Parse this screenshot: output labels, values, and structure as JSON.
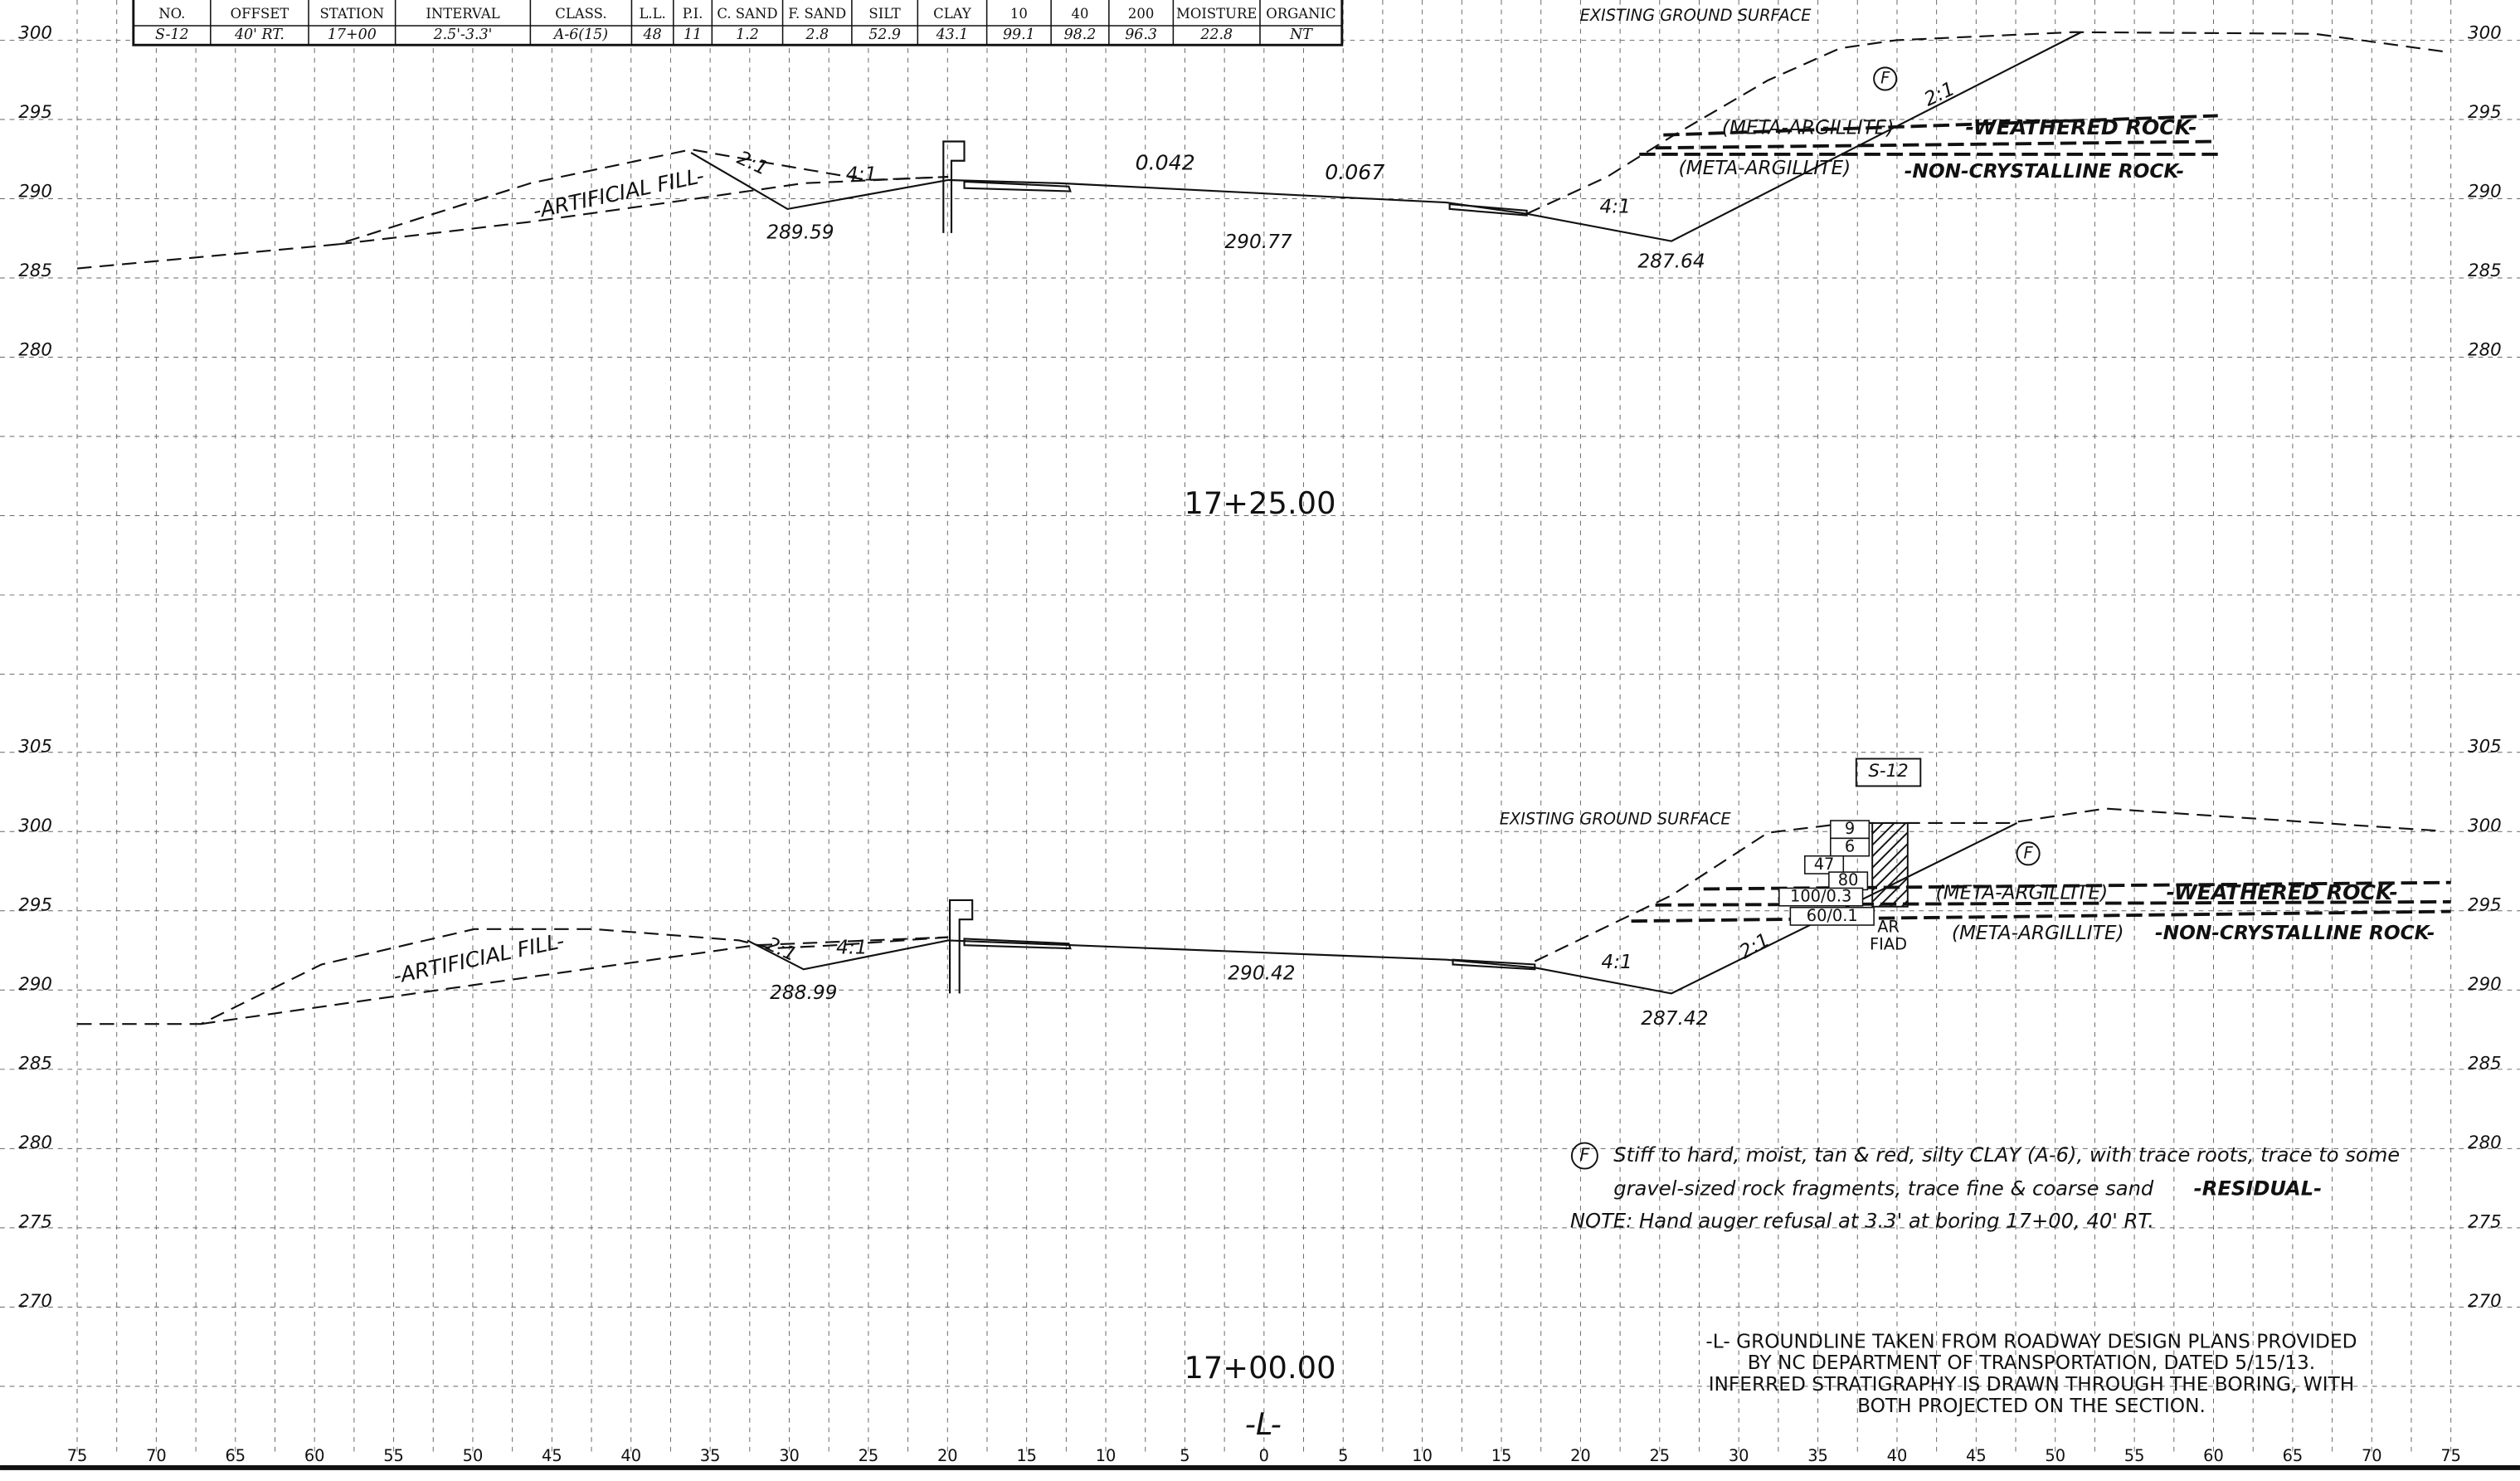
{
  "table": {
    "headers": [
      "NO.",
      "OFFSET",
      "STATION",
      "INTERVAL",
      "CLASS.",
      "L.L.",
      "P.I.",
      "C. SAND",
      "F. SAND",
      "SILT",
      "CLAY",
      "10",
      "40",
      "200",
      "MOISTURE",
      "ORGANIC"
    ],
    "row": [
      "S-12",
      "40' RT.",
      "17+00",
      "2.5'-3.3'",
      "A-6(15)",
      "48",
      "11",
      "1.2",
      "2.8",
      "52.9",
      "43.1",
      "99.1",
      "98.2",
      "96.3",
      "22.8",
      "NT"
    ]
  },
  "sections": [
    {
      "station": "17+25.00",
      "elevations": [
        300,
        295,
        290,
        285,
        280
      ],
      "labels": [
        "EXISTING GROUND SURFACE",
        "F",
        "2:1",
        "(META-ARGILLITE)",
        "-WEATHERED ROCK-",
        "(META-ARGILLITE)",
        "-NON-CRYSTALLINE ROCK-",
        "-ARTIFICIAL FILL-",
        "2:1",
        "4:1",
        "0.042",
        "0.067",
        "4:1",
        "289.59",
        "290.77",
        "287.64"
      ]
    },
    {
      "station": "17+00.00",
      "elevations": [
        305,
        300,
        295,
        290,
        285,
        280,
        275,
        270
      ],
      "labels": [
        "S-12",
        "EXISTING GROUND SURFACE",
        "F",
        "(META-ARGILLITE)",
        "-WEATHERED ROCK-",
        "(META-ARGILLITE)",
        "-NON-CRYSTALLINE ROCK-",
        "-ARTIFICIAL FILL-",
        "2:1",
        "4:1",
        "290.42",
        "288.99",
        "4:1",
        "2:1",
        "287.42",
        "AR",
        "FIAD"
      ],
      "blow_counts": [
        "9",
        "6",
        "47",
        "80",
        "100/0.3",
        "60/0.1"
      ]
    }
  ],
  "offsets": [
    "75",
    "70",
    "65",
    "60",
    "55",
    "50",
    "45",
    "40",
    "35",
    "30",
    "25",
    "20",
    "15",
    "10",
    "5",
    "0",
    "5",
    "10",
    "15",
    "20",
    "25",
    "30",
    "35",
    "40",
    "45",
    "50",
    "55",
    "60",
    "65",
    "70",
    "75"
  ],
  "legend": {
    "symbol": "F",
    "lines": [
      "Stiff to hard, moist, tan & red, silty CLAY (A-6), with trace roots, trace to some",
      "gravel-sized rock fragments, trace fine & coarse sand"
    ],
    "unit": "-RESIDUAL-",
    "note": "NOTE: Hand auger refusal at 3.3' at boring 17+00, 40' RT."
  },
  "general_notes": [
    "-L- GROUNDLINE TAKEN FROM ROADWAY DESIGN PLANS PROVIDED",
    "BY NC DEPARTMENT OF TRANSPORTATION, DATED 5/15/13.",
    "INFERRED STRATIGRAPHY IS DRAWN THROUGH THE BORING, WITH",
    "BOTH PROJECTED ON THE SECTION."
  ],
  "centerline": "-L-"
}
